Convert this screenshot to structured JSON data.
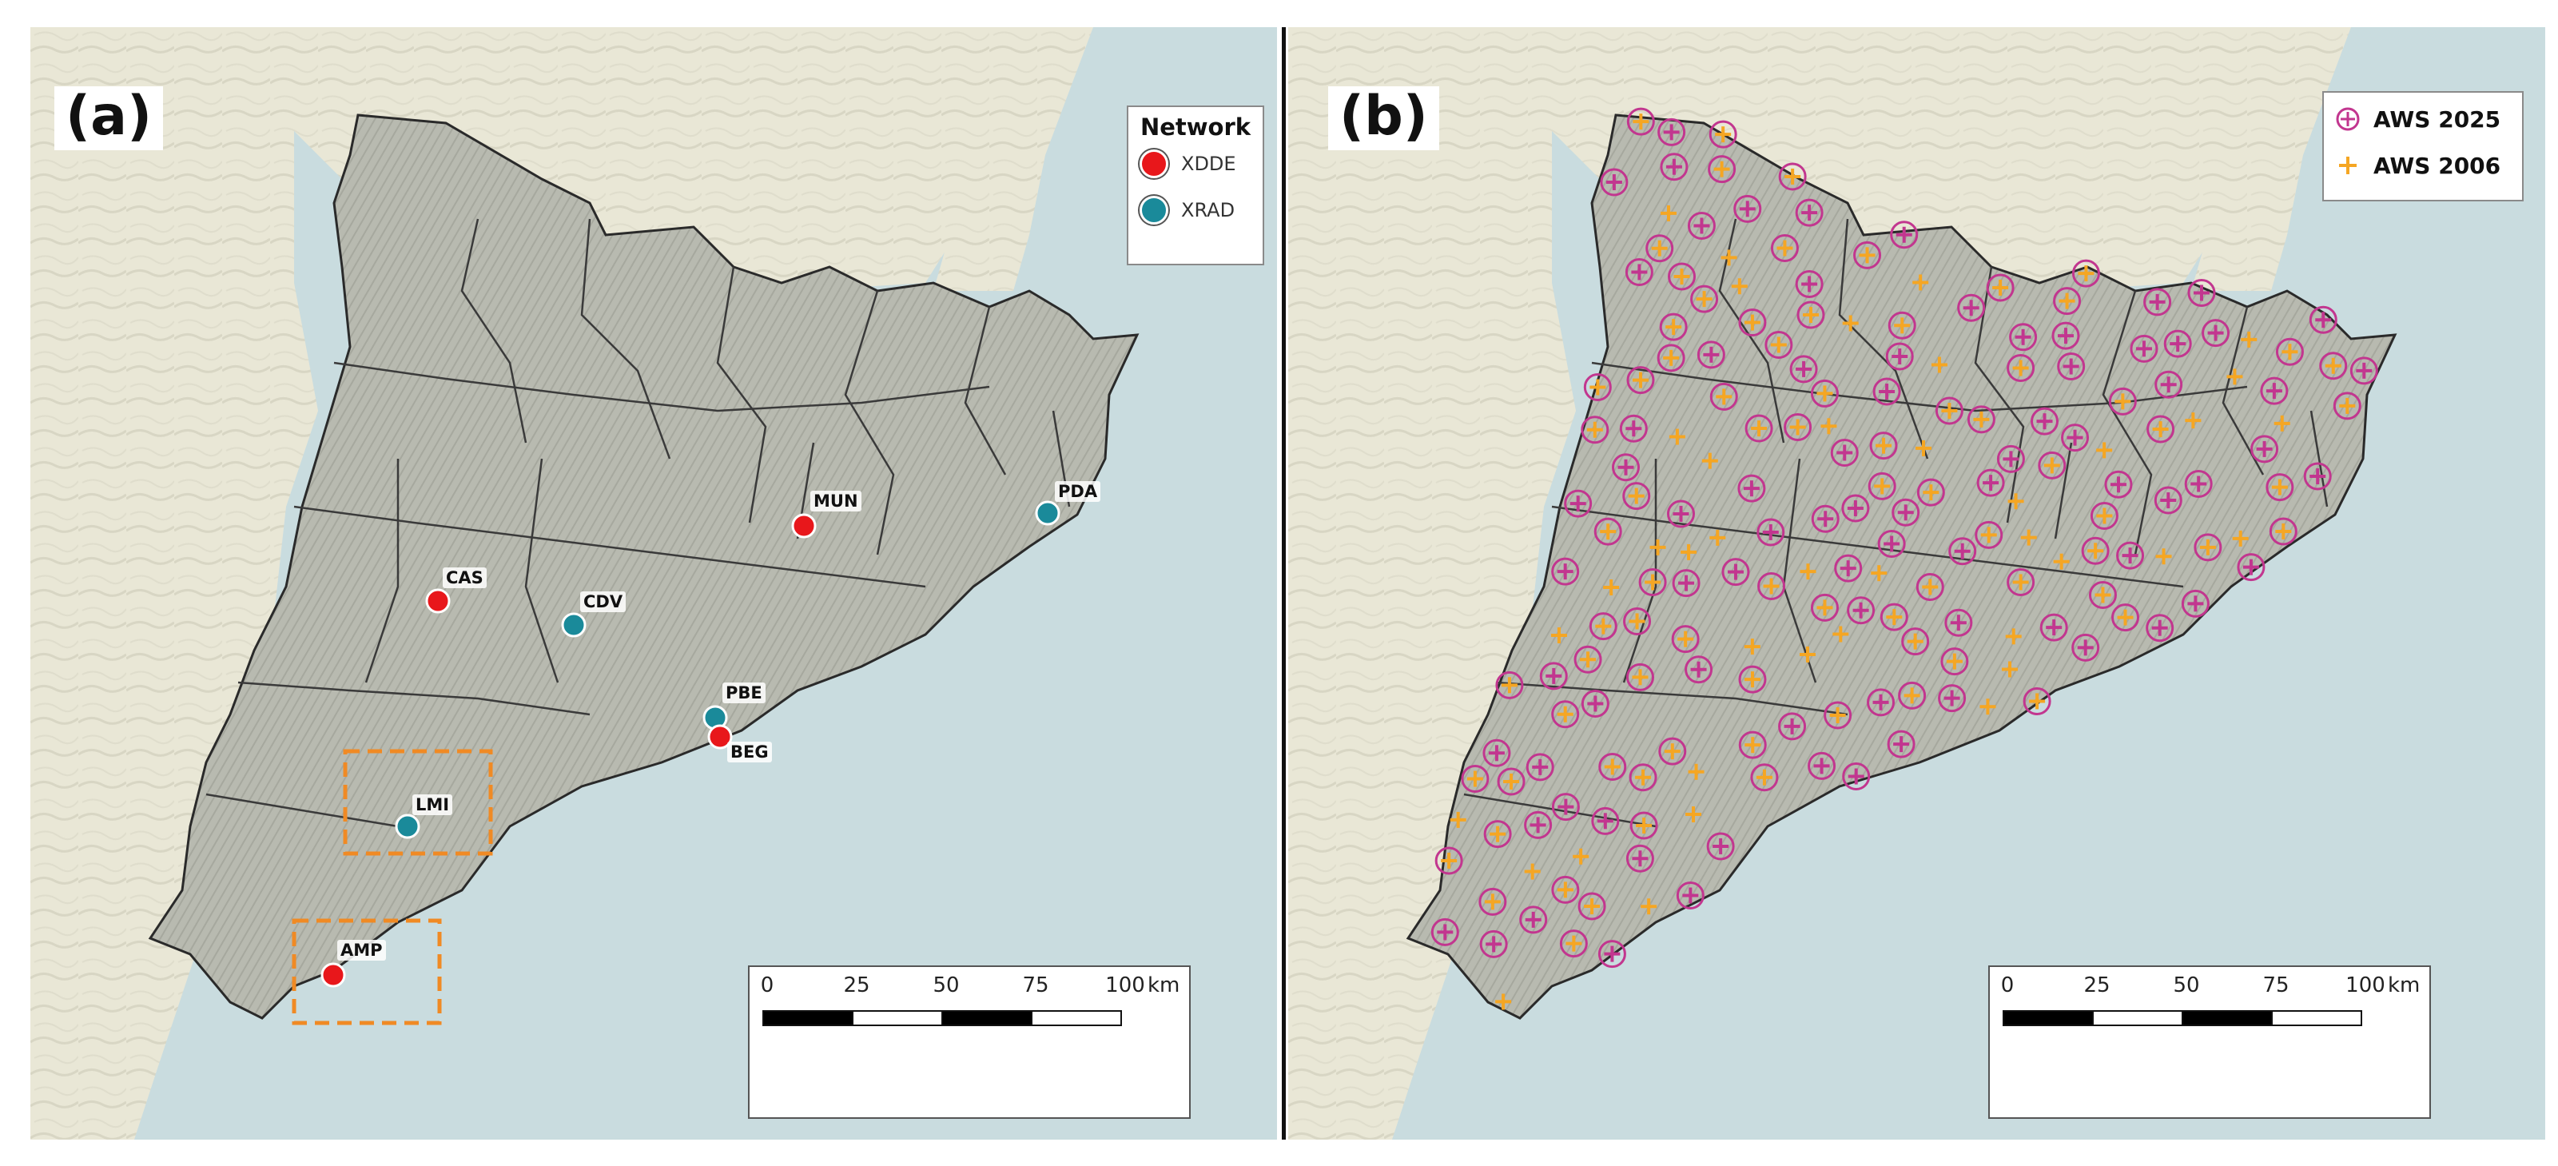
{
  "panel_a": {
    "label": "(a)",
    "legend": {
      "title": "Network",
      "items": [
        {
          "label": "XDDE",
          "color": "#e8171b"
        },
        {
          "label": "XRAD",
          "color": "#1a8a9a"
        }
      ]
    },
    "stations": [
      {
        "code": "MUN",
        "network": "XDDE"
      },
      {
        "code": "PDA",
        "network": "XRAD"
      },
      {
        "code": "CAS",
        "network": "XDDE"
      },
      {
        "code": "CDV",
        "network": "XRAD"
      },
      {
        "code": "PBE",
        "network": "XRAD"
      },
      {
        "code": "BEG",
        "network": "XDDE"
      },
      {
        "code": "LMI",
        "network": "XRAD"
      },
      {
        "code": "AMP",
        "network": "XDDE"
      }
    ],
    "scale": {
      "ticks": [
        "0",
        "25",
        "50",
        "75",
        "100"
      ],
      "unit": "km"
    }
  },
  "panel_b": {
    "label": "(b)",
    "legend": {
      "items": [
        {
          "label": "AWS 2025",
          "symbol": "circled-cross-icon",
          "color": "#c2368f"
        },
        {
          "label": "AWS 2006",
          "symbol": "cross-icon",
          "color": "#f5a623"
        }
      ]
    },
    "scale": {
      "ticks": [
        "0",
        "25",
        "50",
        "75",
        "100"
      ],
      "unit": "km"
    }
  },
  "colors": {
    "sea": "#c9dcdf",
    "land_outside": "#e9e7d6",
    "catalonia": "#b9bbb1",
    "highlight_box": "#f08a24"
  }
}
